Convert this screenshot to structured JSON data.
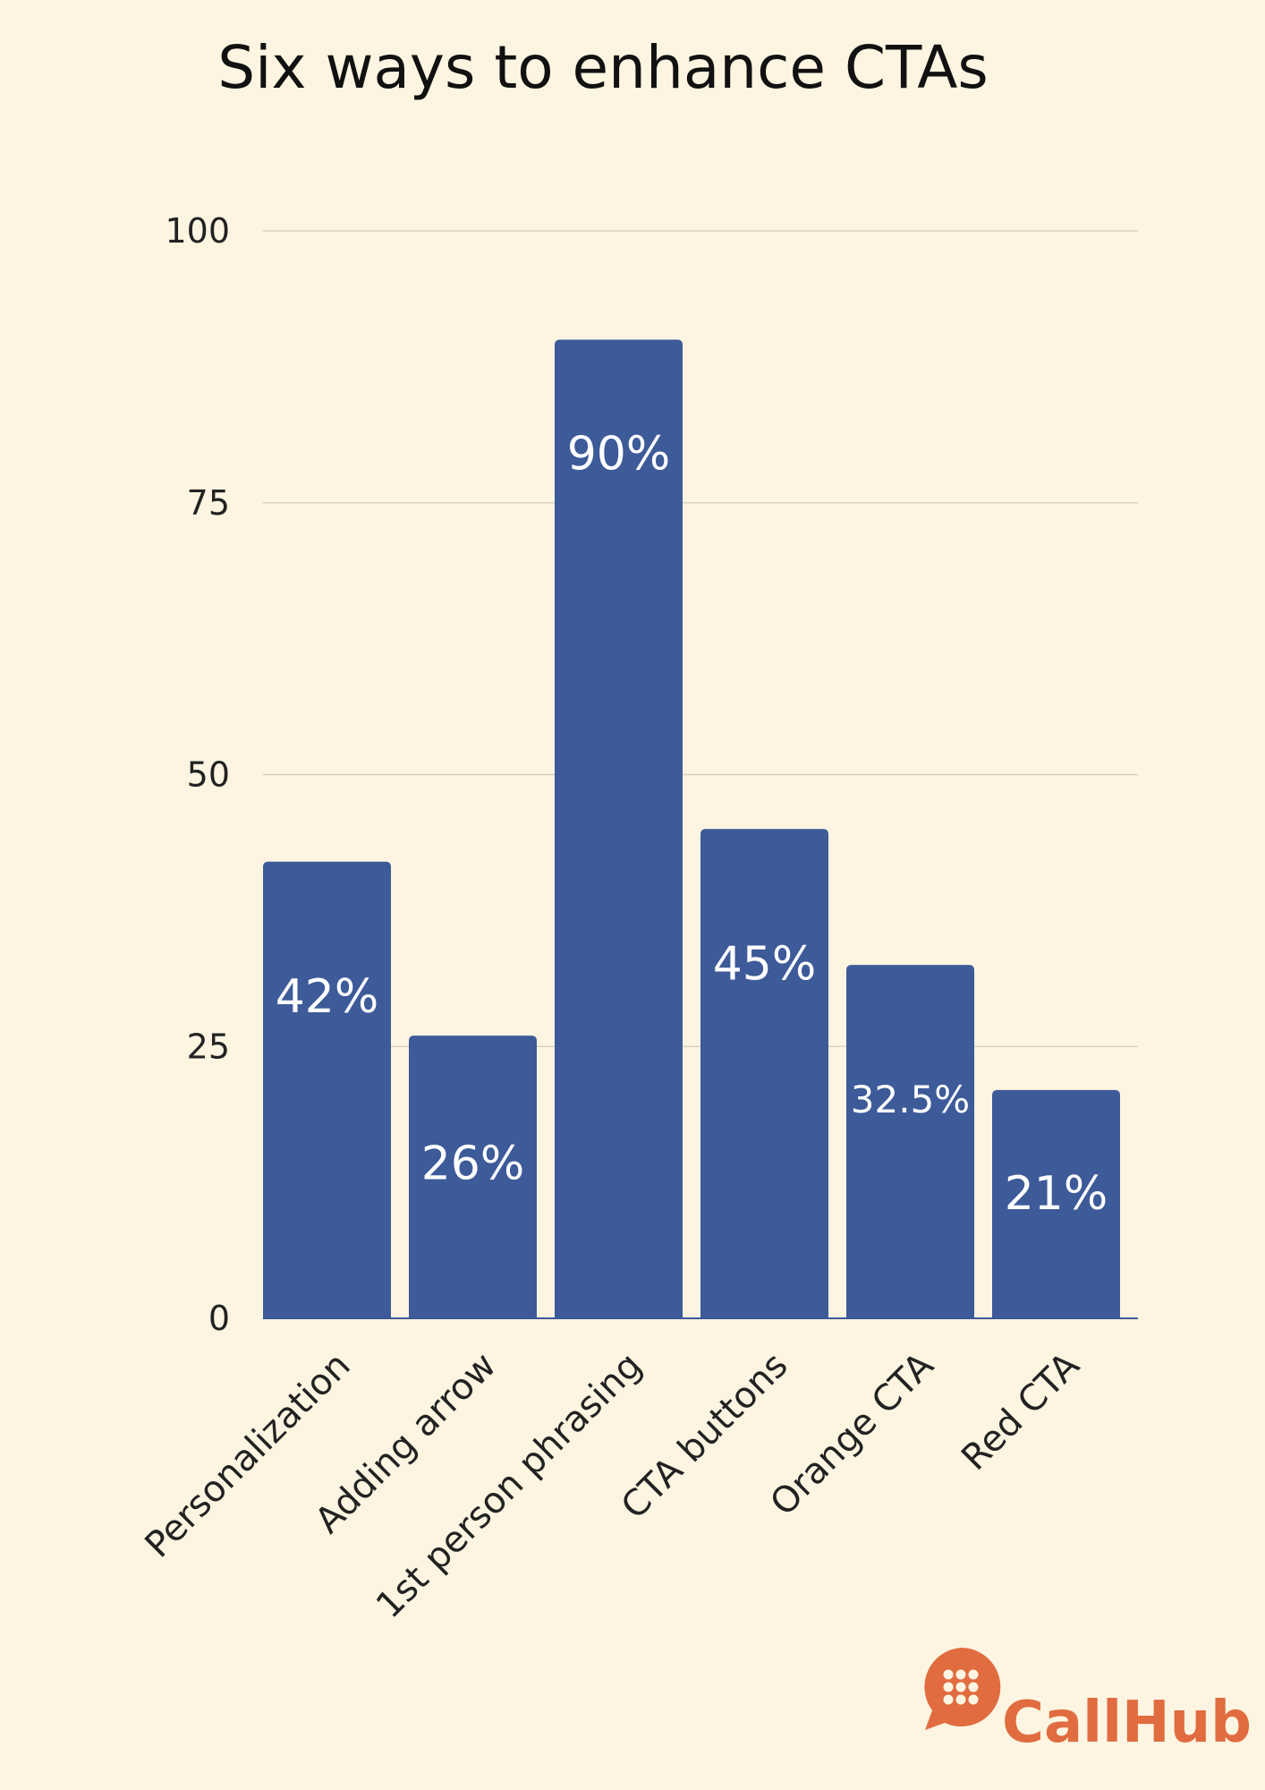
{
  "chart_data": {
    "type": "bar",
    "title": "Six ways to enhance CTAs",
    "categories": [
      "Personalization",
      "Adding arrow",
      "1st person phrasing",
      "CTA buttons",
      "Orange CTA",
      "Red CTA"
    ],
    "values": [
      42,
      26,
      90,
      45,
      32.5,
      21
    ],
    "data_labels": [
      "42%",
      "26%",
      "90%",
      "45%",
      "32.5%",
      "21%"
    ],
    "ylim": [
      0,
      100
    ],
    "yticks": [
      0,
      25,
      50,
      75,
      100
    ],
    "ytick_labels": [
      "0",
      "25",
      "50",
      "75",
      "100"
    ],
    "xlabel": "",
    "ylabel": "",
    "grid": true,
    "bar_color": "#3d5a99",
    "background": "#fdf5e1"
  },
  "brand": {
    "name": "CallHub",
    "icon": "chat-bubble-dots-icon",
    "color": "#e06c3f"
  }
}
